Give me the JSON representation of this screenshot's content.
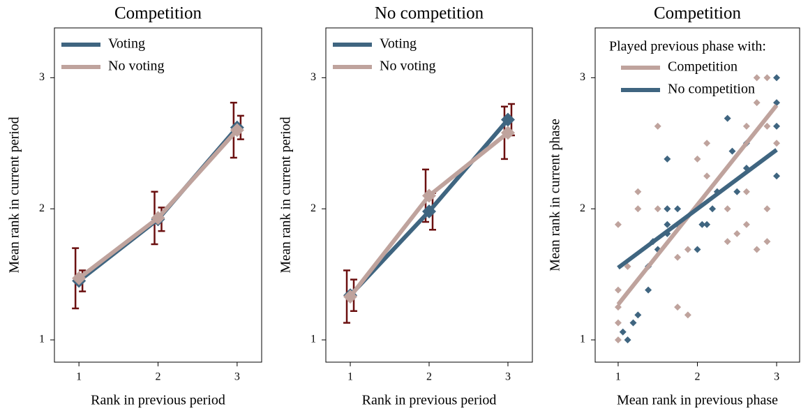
{
  "chart_data": [
    {
      "type": "line",
      "title": "Competition",
      "xlabel": "Rank in previous period",
      "ylabel": "Mean rank in current period",
      "x": [
        1,
        2,
        3
      ],
      "xlim": [
        0.69,
        3.31
      ],
      "xticks": [
        1,
        2,
        3
      ],
      "ylim": [
        0.83,
        3.38
      ],
      "yticks": [
        1,
        2,
        3
      ],
      "legend": "upper left",
      "error_color": "#6b1010",
      "series": [
        {
          "name": "Voting",
          "color": "#3f6580",
          "values": [
            1.45,
            1.92,
            2.62
          ],
          "errors": [
            0.08,
            0.09,
            0.09
          ]
        },
        {
          "name": "No voting",
          "color": "#bfa39d",
          "values": [
            1.47,
            1.93,
            2.6
          ],
          "errors": [
            0.23,
            0.2,
            0.21
          ]
        }
      ]
    },
    {
      "type": "line",
      "title": "No competition",
      "xlabel": "Rank in previous period",
      "ylabel": "Mean rank in current period",
      "x": [
        1,
        2,
        3
      ],
      "xlim": [
        0.69,
        3.31
      ],
      "xticks": [
        1,
        2,
        3
      ],
      "ylim": [
        0.83,
        3.38
      ],
      "yticks": [
        1,
        2,
        3
      ],
      "legend": "upper left",
      "error_color": "#6b1010",
      "series": [
        {
          "name": "Voting",
          "color": "#3f6580",
          "values": [
            1.34,
            1.98,
            2.68
          ],
          "errors": [
            0.12,
            0.14,
            0.12
          ]
        },
        {
          "name": "No voting",
          "color": "#bfa39d",
          "values": [
            1.33,
            2.1,
            2.58
          ],
          "errors": [
            0.2,
            0.2,
            0.2
          ]
        }
      ]
    },
    {
      "type": "scatter",
      "title": "Competition",
      "xlabel": "Mean rank in previous phase",
      "ylabel": "Mean rank in current phase",
      "xlim": [
        0.71,
        3.29
      ],
      "xticks": [
        1,
        2,
        3
      ],
      "ylim": [
        0.83,
        3.38
      ],
      "yticks": [
        1,
        2,
        3
      ],
      "legend": "upper left",
      "legend_title": "Played previous phase with:",
      "fit_x": [
        1,
        3
      ],
      "series": [
        {
          "name": "Competition",
          "color": "#bfa39d",
          "fit": [
            1.27,
            2.79
          ],
          "x": [
            1,
            1,
            1,
            1,
            1,
            1.12,
            1.25,
            1.25,
            1.5,
            1.5,
            1.62,
            1.75,
            1.75,
            1.88,
            1.88,
            2,
            2.12,
            2.12,
            2.25,
            2.38,
            2.38,
            2.5,
            2.62,
            2.62,
            2.62,
            2.75,
            2.75,
            2.75,
            2.88,
            2.88,
            2.88,
            2.88,
            3
          ],
          "values": [
            1.88,
            1.38,
            1.25,
            1.13,
            1,
            1.56,
            2.13,
            2,
            2.63,
            2,
            2,
            1.63,
            1.25,
            1.19,
            1.69,
            2.38,
            2.5,
            2.25,
            2.13,
            1.75,
            2,
            1.81,
            1.88,
            2.63,
            2.13,
            2.81,
            3,
            1.69,
            3,
            2.63,
            2,
            1.75,
            2.5
          ]
        },
        {
          "name": "No competition",
          "color": "#3f6580",
          "fit": [
            1.55,
            2.45
          ],
          "x": [
            1.06,
            1.12,
            1.19,
            1.25,
            1.38,
            1.38,
            1.44,
            1.5,
            1.62,
            1.62,
            1.62,
            1.62,
            1.75,
            1.75,
            2,
            2.06,
            2.12,
            2.19,
            2.25,
            2.38,
            2.44,
            2.5,
            2.62,
            2.62,
            3,
            3,
            3,
            3
          ],
          "values": [
            1.06,
            1,
            1.13,
            1.19,
            1.56,
            1.38,
            1.75,
            1.69,
            2.38,
            2,
            1.88,
            1.81,
            2,
            1.88,
            1.69,
            1.88,
            1.88,
            2,
            2.13,
            2.69,
            2.44,
            2.13,
            2.5,
            2.31,
            3,
            2.81,
            2.63,
            2.25
          ]
        }
      ]
    }
  ]
}
